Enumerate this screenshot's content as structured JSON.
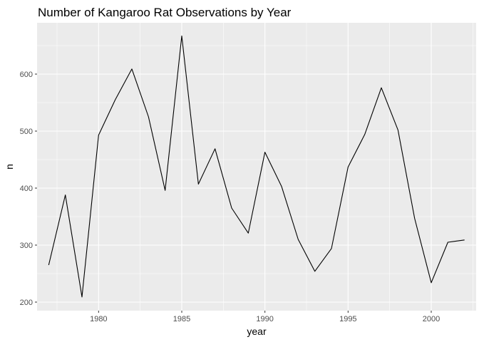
{
  "chart_data": {
    "type": "line",
    "title": "Number of Kangaroo Rat Observations by Year",
    "xlabel": "year",
    "ylabel": "n",
    "x": [
      1977,
      1978,
      1979,
      1980,
      1981,
      1982,
      1983,
      1984,
      1985,
      1986,
      1987,
      1988,
      1989,
      1990,
      1991,
      1992,
      1993,
      1994,
      1995,
      1996,
      1997,
      1998,
      1999,
      2000,
      2001,
      2002
    ],
    "series": [
      {
        "values": [
          265,
          388,
          209,
          493,
          555,
          609,
          525,
          396,
          667,
          407,
          469,
          365,
          321,
          463,
          403,
          310,
          254,
          294,
          437,
          494,
          576,
          502,
          347,
          234,
          305,
          309
        ],
        "color": "#000000"
      }
    ],
    "xlim": [
      1976.3,
      2002.7
    ],
    "ylim": [
      185,
      690
    ],
    "xticks": [
      1980,
      1985,
      1990,
      1995,
      2000
    ],
    "yticks": [
      200,
      300,
      400,
      500,
      600
    ],
    "grid": true,
    "panel_background": "#ebebeb",
    "grid_color": "#ffffff",
    "axis_text_color": "#4d4d4d"
  }
}
